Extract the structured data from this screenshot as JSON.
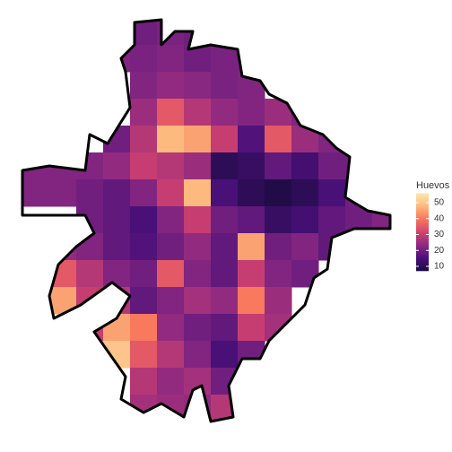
{
  "chart_data": {
    "type": "heatmap",
    "values": [
      [
        null,
        null,
        null,
        null,
        20,
        21,
        20,
        null,
        null,
        null,
        null,
        null,
        null,
        null
      ],
      [
        null,
        null,
        null,
        22,
        21,
        22,
        20,
        21,
        22,
        null,
        null,
        null,
        null,
        null
      ],
      [
        null,
        null,
        null,
        null,
        22,
        24,
        23,
        21,
        22,
        null,
        null,
        null,
        null,
        null
      ],
      [
        null,
        null,
        null,
        null,
        25,
        35,
        28,
        24,
        22,
        25,
        22,
        null,
        null,
        null
      ],
      [
        null,
        null,
        null,
        20,
        28,
        48,
        45,
        30,
        16,
        35,
        25,
        22,
        null,
        null
      ],
      [
        22,
        22,
        22,
        24,
        30,
        28,
        25,
        10,
        12,
        18,
        14,
        20,
        20,
        null
      ],
      [
        22,
        22,
        20,
        18,
        22,
        30,
        48,
        15,
        10,
        8,
        10,
        15,
        20,
        22
      ],
      [
        null,
        null,
        20,
        18,
        15,
        22,
        30,
        20,
        18,
        12,
        14,
        18,
        20,
        22
      ],
      [
        null,
        24,
        22,
        18,
        16,
        20,
        24,
        18,
        45,
        20,
        22,
        18,
        null,
        null
      ],
      [
        null,
        35,
        28,
        22,
        20,
        35,
        22,
        18,
        30,
        22,
        20,
        null,
        null,
        null
      ],
      [
        null,
        45,
        30,
        28,
        18,
        22,
        26,
        24,
        40,
        25,
        null,
        null,
        null,
        null
      ],
      [
        null,
        null,
        30,
        45,
        40,
        24,
        20,
        18,
        30,
        26,
        null,
        null,
        null,
        null
      ],
      [
        null,
        null,
        null,
        50,
        35,
        28,
        22,
        15,
        20,
        null,
        null,
        null,
        null,
        null
      ],
      [
        null,
        null,
        null,
        null,
        28,
        24,
        26,
        20,
        22,
        null,
        null,
        null,
        null,
        null
      ],
      [
        null,
        null,
        null,
        null,
        26,
        25,
        24,
        28,
        null,
        null,
        null,
        null,
        null,
        null
      ]
    ],
    "legend_title": "Huevos",
    "colorbar_lim": [
      7,
      56
    ],
    "colorbar_ticks": [
      10,
      20,
      30,
      40,
      50
    ],
    "colors": [
      "#1b0c41",
      "#4a1079",
      "#8c2981",
      "#d3436e",
      "#f8765c",
      "#fdb97d",
      "#fde8b0"
    ]
  }
}
